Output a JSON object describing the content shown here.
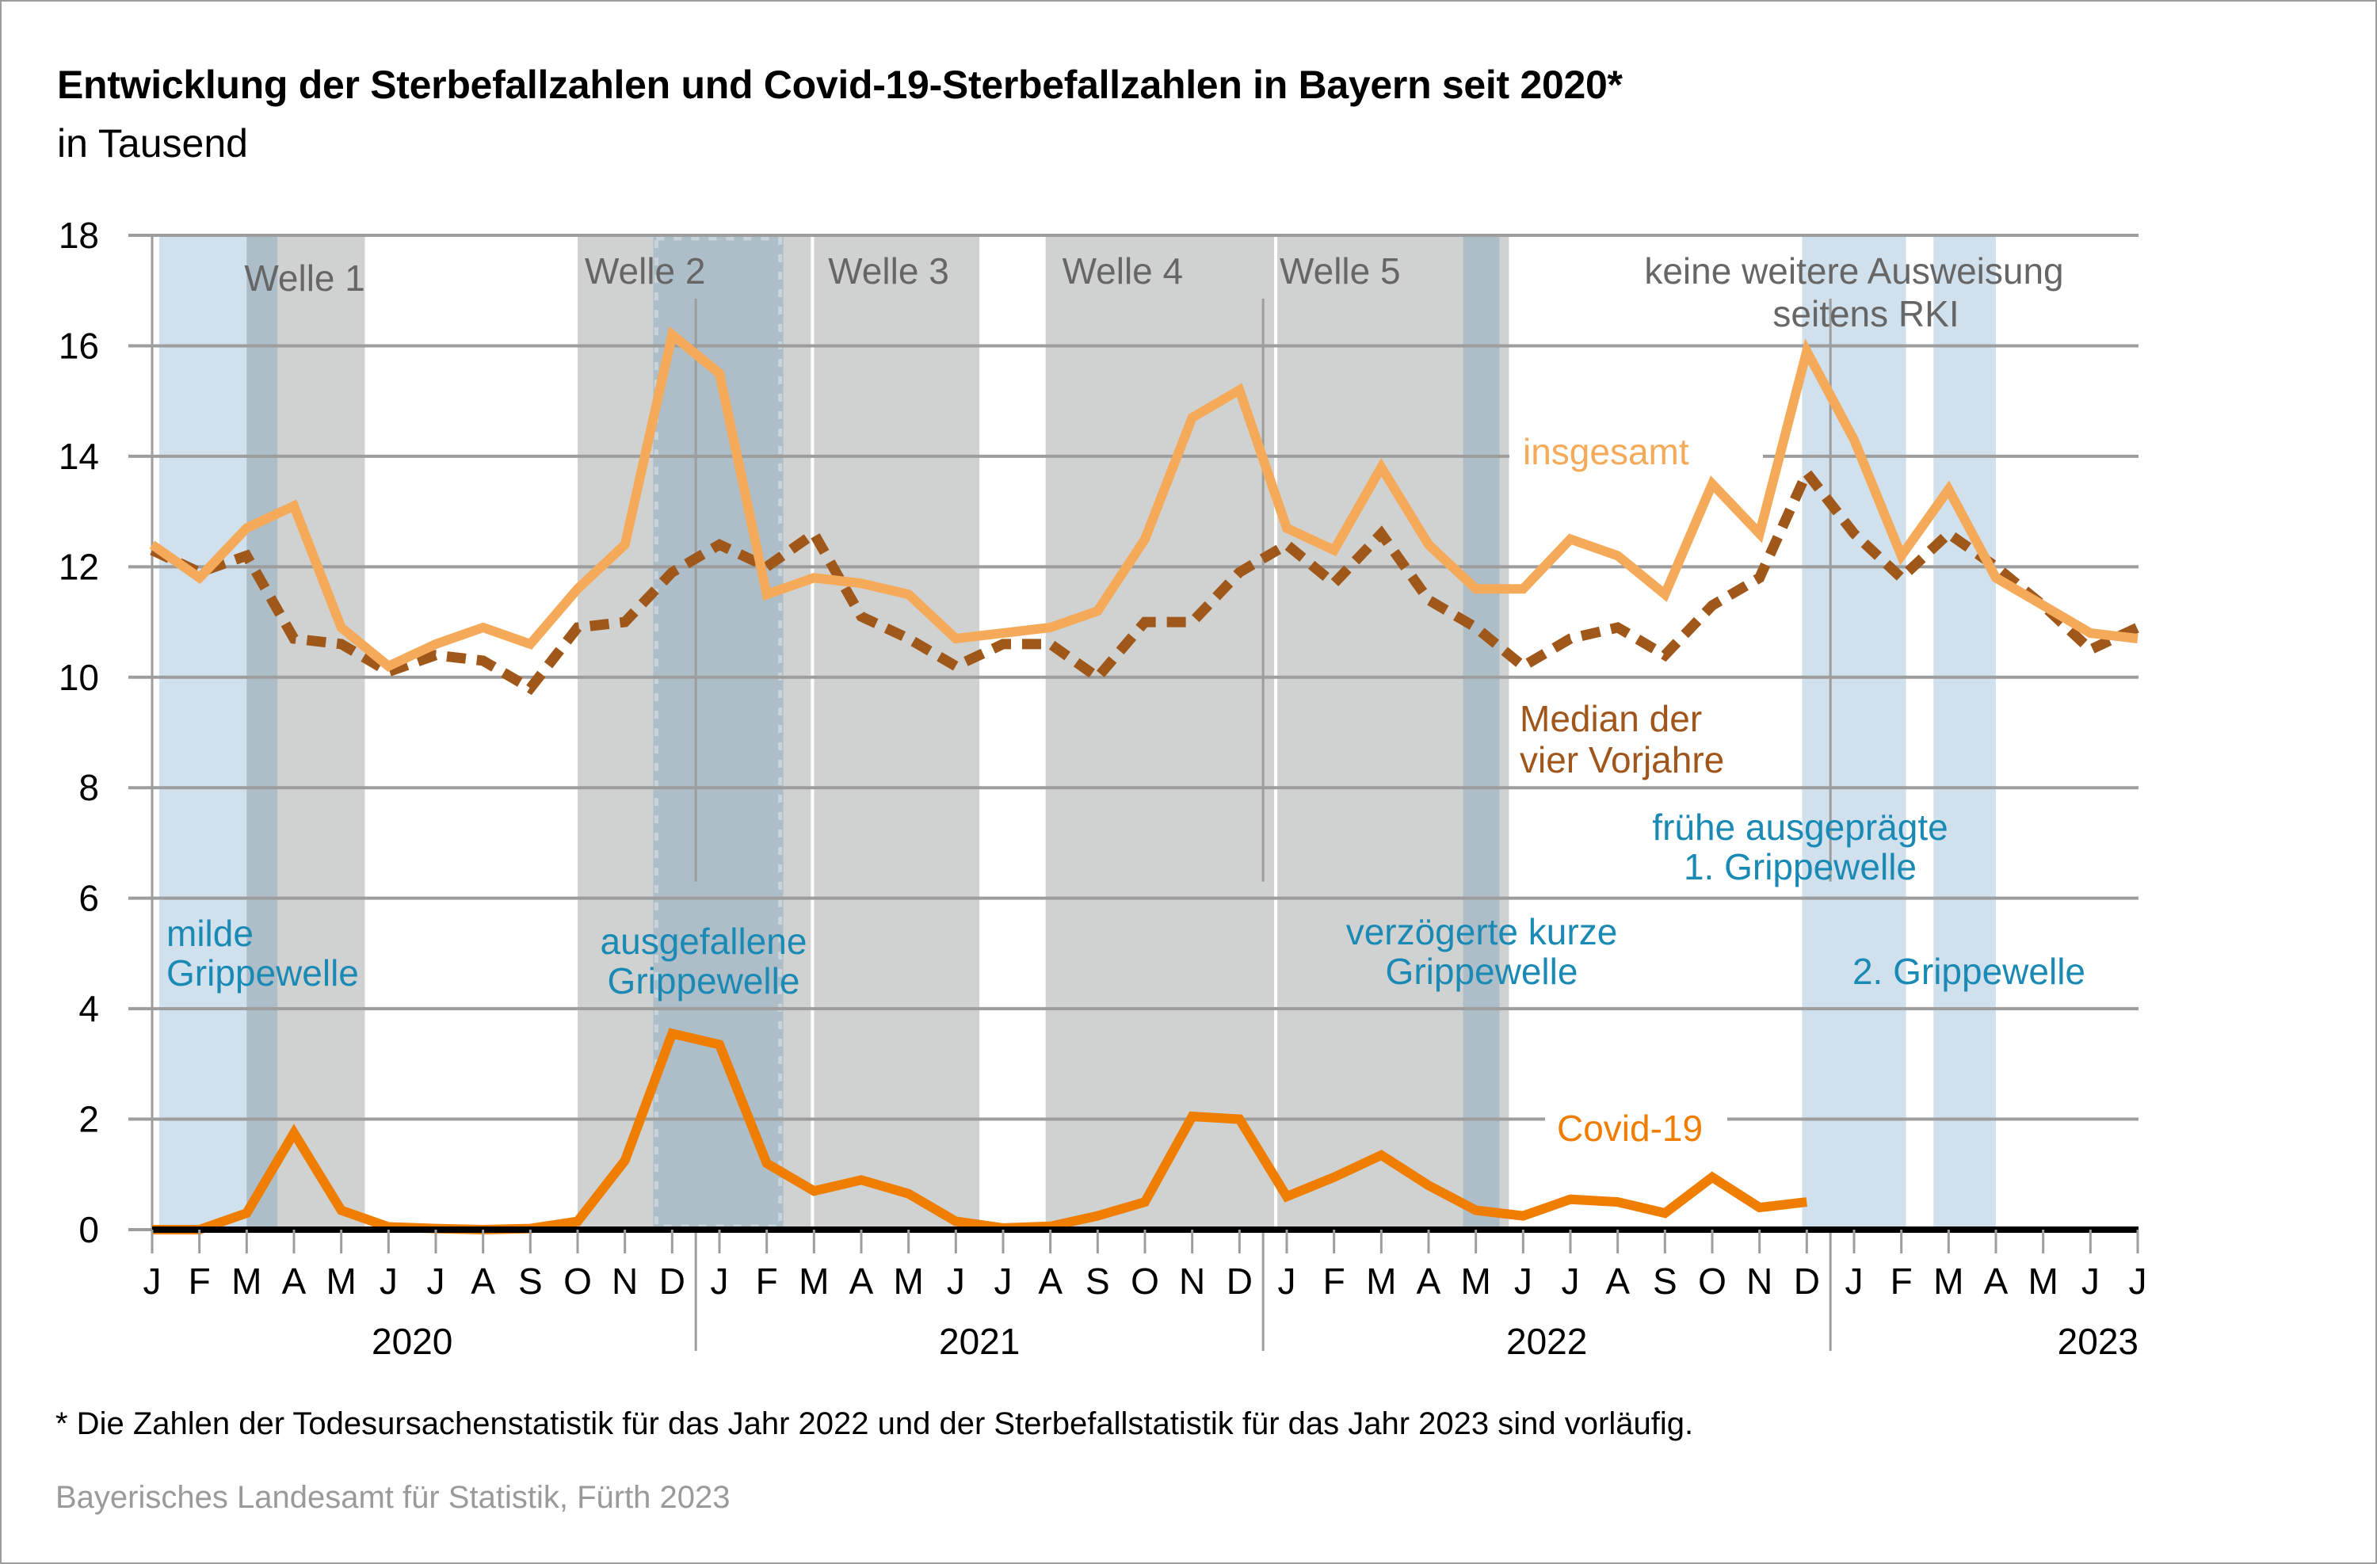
{
  "chart_data": {
    "type": "line",
    "title": "Entwicklung der Sterbefallzahlen und Covid-19-Sterbefallzahlen in Bayern seit 2020*",
    "subtitle": "in Tausend",
    "xlabel": "",
    "ylabel": "",
    "ylim": [
      0,
      18
    ],
    "yticks": [
      "0",
      "2",
      "4",
      "6",
      "8",
      "10",
      "12",
      "14",
      "16",
      "18"
    ],
    "grid": true,
    "x_month_labels": [
      "J",
      "F",
      "M",
      "A",
      "M",
      "J",
      "J",
      "A",
      "S",
      "O",
      "N",
      "D",
      "J",
      "F",
      "M",
      "A",
      "M",
      "J",
      "J",
      "A",
      "S",
      "O",
      "N",
      "D",
      "J",
      "F",
      "M",
      "A",
      "M",
      "J",
      "J",
      "A",
      "S",
      "O",
      "N",
      "D",
      "J",
      "F",
      "M",
      "A",
      "M",
      "J",
      "J"
    ],
    "years": [
      {
        "label": "2020",
        "start_index": 0,
        "end_index": 11
      },
      {
        "label": "2021",
        "start_index": 12,
        "end_index": 23
      },
      {
        "label": "2022",
        "start_index": 24,
        "end_index": 35
      },
      {
        "label": "2023",
        "start_index": 36,
        "end_index": 42
      }
    ],
    "series": [
      {
        "name": "insgesamt",
        "color": "#f5aa5a",
        "style": "solid",
        "values": [
          12.4,
          11.8,
          12.7,
          13.1,
          10.9,
          10.2,
          10.6,
          10.9,
          10.6,
          11.6,
          12.4,
          16.2,
          15.5,
          11.5,
          11.8,
          11.7,
          11.5,
          10.7,
          10.8,
          10.9,
          11.2,
          12.5,
          14.7,
          15.2,
          12.7,
          12.3,
          13.8,
          12.4,
          11.6,
          11.6,
          12.5,
          12.2,
          11.5,
          13.5,
          12.6,
          15.9,
          14.3,
          12.2,
          13.4,
          11.8,
          11.3,
          10.8,
          10.7
        ]
      },
      {
        "name": "Median der vier Vorjahre",
        "color": "#a0581a",
        "style": "dashed",
        "values": [
          12.3,
          11.9,
          12.2,
          10.7,
          10.6,
          10.1,
          10.4,
          10.3,
          9.8,
          10.9,
          11.0,
          11.9,
          12.4,
          12.0,
          12.6,
          11.1,
          10.7,
          10.2,
          10.6,
          10.6,
          10.0,
          11.0,
          11.0,
          11.9,
          12.4,
          11.7,
          12.6,
          11.4,
          10.9,
          10.2,
          10.7,
          10.9,
          10.4,
          11.3,
          11.8,
          13.7,
          12.6,
          11.8,
          12.6,
          12.0,
          11.3,
          10.5,
          10.9
        ]
      },
      {
        "name": "Covid-19",
        "color": "#ef7d00",
        "style": "solid",
        "values": [
          0,
          0,
          0.3,
          1.75,
          0.35,
          0.05,
          0.02,
          0,
          0.02,
          0.15,
          1.25,
          3.55,
          3.35,
          1.2,
          0.7,
          0.9,
          0.65,
          0.15,
          0.03,
          0.06,
          0.25,
          0.5,
          2.05,
          2.0,
          0.6,
          0.95,
          1.35,
          0.8,
          0.35,
          0.25,
          0.55,
          0.5,
          0.3,
          0.95,
          0.4,
          0.5
        ]
      }
    ],
    "covid_waves": [
      {
        "label": "Welle 1",
        "start_month": 2.3,
        "end_month": 4.5
      },
      {
        "label": "Welle 2",
        "start_month": 9.0,
        "end_month": 13.95
      },
      {
        "label": "Welle 3",
        "start_month": 14.0,
        "end_month": 17.5
      },
      {
        "label": "Welle 4",
        "start_month": 18.9,
        "end_month": 23.75
      },
      {
        "label": "Welle 5",
        "start_month": 23.8,
        "end_month": 28.7
      }
    ],
    "wave_labels_extra": [
      "keine weitere Ausweisung",
      "seitens RKI"
    ],
    "flu_waves": [
      {
        "label_lines": [
          "milde",
          "Grippewelle"
        ],
        "start_month": 0.15,
        "end_month": 2.1,
        "overlap_start": 2.0,
        "overlap_end": 2.65
      },
      {
        "label_lines": [
          "ausgefallene",
          "Grippewelle"
        ],
        "start_month": 10.6,
        "end_month": 13.35,
        "dotted": true
      },
      {
        "label_lines": [
          "verzögerte kurze",
          "Grippewelle"
        ],
        "start_month": 27.73,
        "end_month": 28.5
      },
      {
        "label_lines": [
          "frühe ausgeprägte",
          "1. Grippewelle"
        ],
        "start_month": 34.9,
        "end_month": 37.1
      },
      {
        "label_lines": [
          "2. Grippewelle"
        ],
        "start_month": 37.68,
        "end_month": 39.0
      }
    ],
    "annotations": {
      "insgesamt": "insgesamt",
      "median": [
        "Median der",
        "vier Vorjahre"
      ],
      "covid": "Covid-19"
    },
    "colors": {
      "wave_grey": "#d0d2d1",
      "flu_blue": "#d0e0ec",
      "overlap_blue": "#adbec9",
      "grid": "#9d9d9d",
      "wave_text": "#666666",
      "flu_text": "#1a8ab5",
      "median_text": "#a0561a"
    }
  },
  "footnote": "* Die Zahlen der Todesursachenstatistik für das Jahr 2022 und der Sterbefallstatistik für das Jahr 2023 sind vorläufig.",
  "source": "Bayerisches Landesamt für Statistik, Fürth 2023"
}
